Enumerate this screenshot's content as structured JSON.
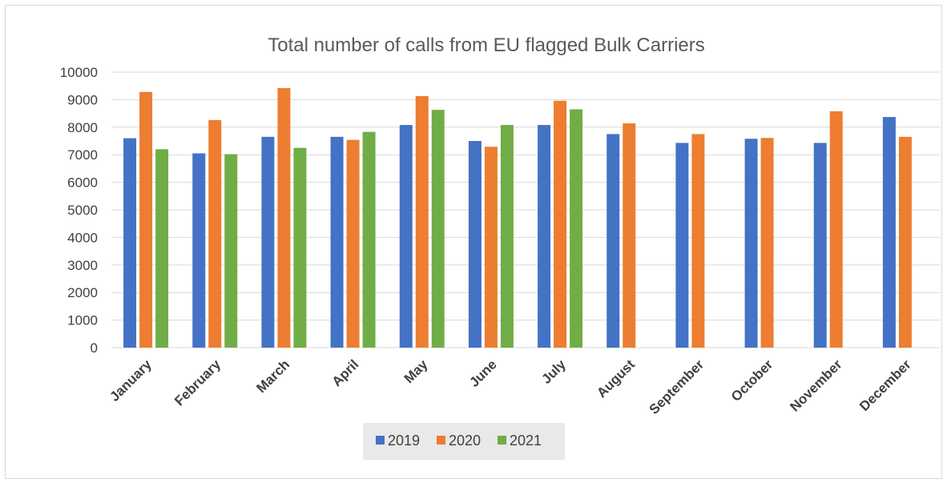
{
  "chart_data": {
    "type": "bar",
    "title": "Total number of calls from EU flagged Bulk Carriers",
    "xlabel": "",
    "ylabel": "",
    "ylim": [
      0,
      10000
    ],
    "yticks": [
      0,
      1000,
      2000,
      3000,
      4000,
      5000,
      6000,
      7000,
      8000,
      9000,
      10000
    ],
    "categories": [
      "January",
      "February",
      "March",
      "April",
      "May",
      "June",
      "July",
      "August",
      "September",
      "October",
      "November",
      "December"
    ],
    "series": [
      {
        "name": "2019",
        "color": "#4472c4",
        "values": [
          7600,
          7050,
          7650,
          7650,
          8080,
          7500,
          8080,
          7750,
          7430,
          7580,
          7430,
          8370
        ]
      },
      {
        "name": "2020",
        "color": "#ed7d31",
        "values": [
          9280,
          8260,
          9420,
          7540,
          9130,
          7290,
          8960,
          8140,
          7750,
          7610,
          8580,
          7650
        ]
      },
      {
        "name": "2021",
        "color": "#70ad47",
        "values": [
          7200,
          7020,
          7250,
          7830,
          8630,
          8080,
          8650,
          null,
          null,
          null,
          null,
          null
        ]
      }
    ],
    "grid": true,
    "legend_position": "bottom"
  }
}
